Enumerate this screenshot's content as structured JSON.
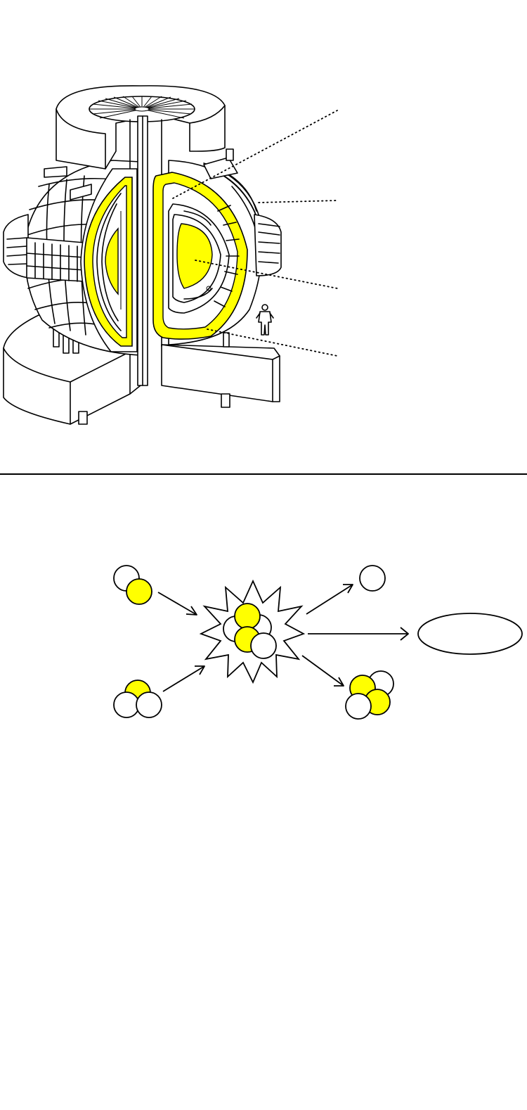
{
  "colors": {
    "highlight": "#ffff00",
    "line": "#000000",
    "background": "#ffffff"
  },
  "top_figure": {
    "subject": "tokamak-cutaway",
    "callout_count": 4
  },
  "bottom_figure": {
    "subject": "deuterium-tritium-fusion-reaction",
    "reactants": [
      {
        "id": "deuterium",
        "protons": 1,
        "neutrons": 1
      },
      {
        "id": "tritium",
        "protons": 1,
        "neutrons": 2
      }
    ],
    "products": [
      {
        "id": "neutron",
        "protons": 0,
        "neutrons": 1
      },
      {
        "id": "helium-4",
        "protons": 2,
        "neutrons": 2
      },
      {
        "id": "energy-label-blank",
        "protons": 0,
        "neutrons": 0
      }
    ]
  }
}
